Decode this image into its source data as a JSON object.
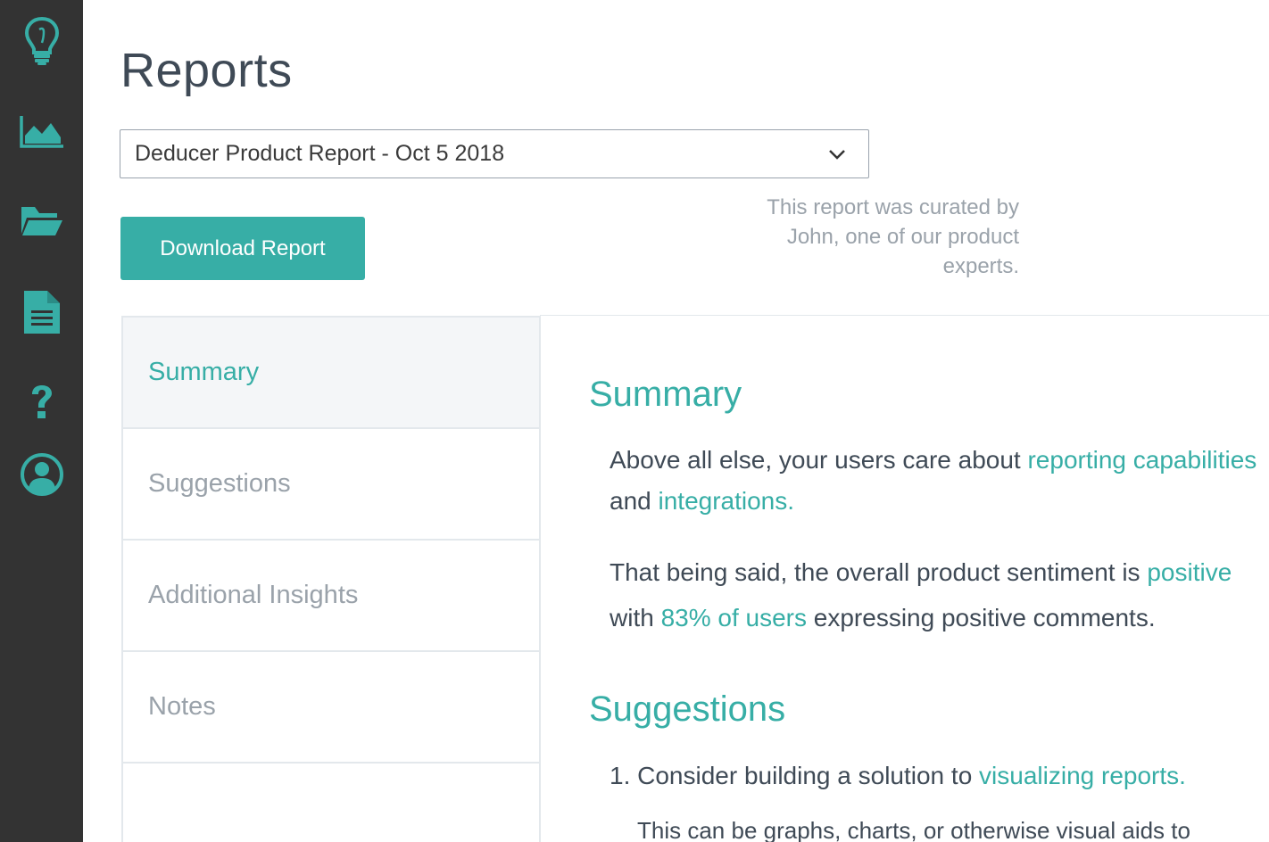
{
  "sidebar": {
    "items": [
      {
        "icon": "lightbulb-icon"
      },
      {
        "icon": "area-chart-icon"
      },
      {
        "icon": "folder-open-icon"
      },
      {
        "icon": "document-icon"
      },
      {
        "icon": "question-icon"
      },
      {
        "icon": "user-circle-icon"
      }
    ],
    "background": "#333333",
    "icon_color": "#37aea6"
  },
  "page": {
    "title": "Reports"
  },
  "report_select": {
    "selected": "Deducer Product Report - Oct 5 2018"
  },
  "download_button": {
    "label": "Download Report"
  },
  "curator_note": {
    "line1": "This report was curated by",
    "line2": "John, one of our product",
    "line3": "experts."
  },
  "tabs": [
    {
      "label": "Summary",
      "active": true
    },
    {
      "label": "Suggestions",
      "active": false
    },
    {
      "label": "Additional Insights",
      "active": false
    },
    {
      "label": "Notes",
      "active": false
    }
  ],
  "content": {
    "summary_heading": "Summary",
    "p1": {
      "prefix": "Above all else, your users care about ",
      "link1": "reporting capabilities",
      "mid": "and ",
      "link2": "integrations."
    },
    "p2": {
      "prefix": "That being said, the overall product sentiment is ",
      "link1": "positive",
      "mid": "with ",
      "link2": "83% of users",
      "suffix": " expressing positive comments."
    },
    "suggestions_heading": "Suggestions",
    "suggestion1": {
      "prefix": "1. Consider building a solution to ",
      "link": "visualizing reports."
    },
    "suggestion1_detail": "This can be graphs, charts, or otherwise visual aids to"
  },
  "colors": {
    "accent": "#37aea6",
    "text": "#3f4a56",
    "muted": "#9aa2aa"
  }
}
